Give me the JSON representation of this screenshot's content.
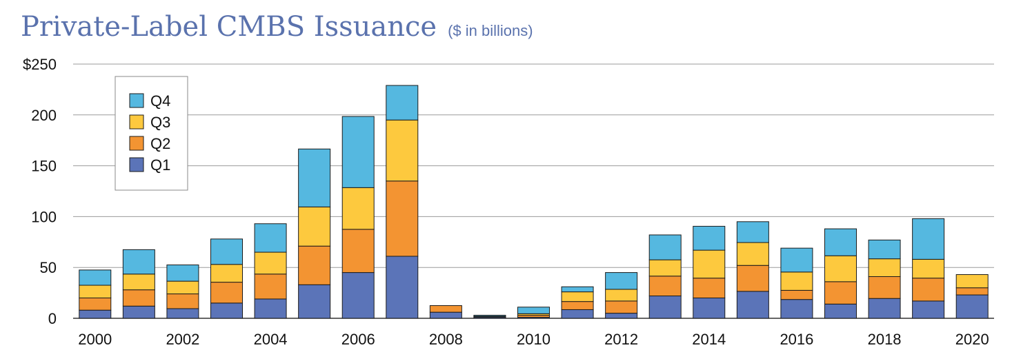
{
  "chart_data": {
    "type": "bar",
    "stacked": true,
    "title": "Private-Label CMBS Issuance",
    "subtitle": "($ in billions)",
    "xlabel": "",
    "ylabel": "",
    "ylim": [
      0,
      250
    ],
    "yticks": [
      0,
      50,
      100,
      150,
      200,
      250
    ],
    "ytick_labels": [
      "0",
      "50",
      "100",
      "150",
      "200",
      "$250"
    ],
    "categories": [
      "2000",
      "2001",
      "2002",
      "2003",
      "2004",
      "2005",
      "2006",
      "2007",
      "2008",
      "2009",
      "2010",
      "2011",
      "2012",
      "2013",
      "2014",
      "2015",
      "2016",
      "2017",
      "2018",
      "2019",
      "2020"
    ],
    "xtick_labels": [
      "2000",
      "",
      "2002",
      "",
      "2004",
      "",
      "2006",
      "",
      "2008",
      "",
      "2010",
      "",
      "2012",
      "",
      "2014",
      "",
      "2016",
      "",
      "2018",
      "",
      "2020"
    ],
    "grid": true,
    "legend_position": "top-left",
    "series": [
      {
        "name": "Q1",
        "color": "#5b74b8",
        "values": [
          8,
          12,
          9.5,
          15,
          19,
          33,
          45,
          61,
          6,
          1,
          1,
          8.5,
          5,
          22,
          20,
          26.5,
          18.5,
          14,
          19.5,
          17,
          23
        ]
      },
      {
        "name": "Q2",
        "color": "#f39432",
        "values": [
          12,
          16,
          14.5,
          20.5,
          24.5,
          38,
          42.5,
          74,
          6.5,
          0.5,
          2,
          8,
          12,
          19.5,
          19.5,
          25.5,
          9,
          22,
          21.5,
          22.5,
          7
        ]
      },
      {
        "name": "Q3",
        "color": "#fdc93e",
        "values": [
          12.5,
          15.5,
          12.5,
          17.5,
          21.5,
          38.5,
          41,
          60,
          0,
          0.5,
          1.5,
          9.5,
          11.5,
          16,
          27.5,
          22.5,
          18,
          25.5,
          17.5,
          18.5,
          13
        ]
      },
      {
        "name": "Q4",
        "color": "#55b8e0",
        "values": [
          15,
          24,
          16,
          25,
          28,
          57,
          70,
          34,
          0,
          1,
          6.5,
          5,
          16.5,
          24.5,
          23.5,
          20.5,
          23.5,
          26.5,
          18.5,
          40,
          0
        ]
      }
    ]
  }
}
